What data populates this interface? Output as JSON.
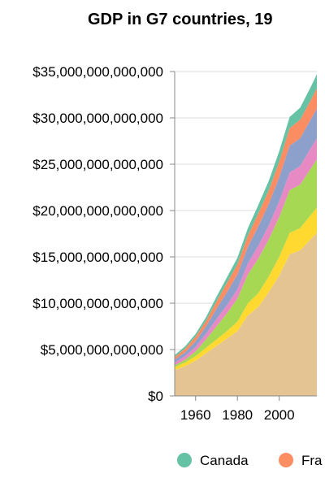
{
  "chart_data": {
    "type": "area",
    "stacked": true,
    "title": "GDP in G7 countries, 19",
    "xlabel": "",
    "ylabel": "",
    "x_ticks": [
      1960,
      1980,
      2000
    ],
    "y_ticks": [
      "$0",
      "$5,000,000,000,000",
      "$10,000,000,000,000",
      "$15,000,000,000,000",
      "$20,000,000,000,000",
      "$25,000,000,000,000",
      "$30,000,000,000,000",
      "$35,000,000,000,000"
    ],
    "xlim": [
      1950,
      2018
    ],
    "ylim": [
      0,
      35000000000000
    ],
    "grid": true,
    "legend_position": "bottom",
    "x": [
      1950,
      1955,
      1960,
      1965,
      1970,
      1975,
      1980,
      1985,
      1990,
      1995,
      2000,
      2005,
      2010,
      2015,
      2018
    ],
    "series": [
      {
        "color": "#e5c494",
        "values": [
          2800000000000.0,
          3200000000000.0,
          3800000000000.0,
          4600000000000.0,
          5400000000000.0,
          6200000000000.0,
          7000000000000.0,
          8700000000000.0,
          9600000000000.0,
          11200000000000.0,
          13000000000000.0,
          15300000000000.0,
          15700000000000.0,
          16900000000000.0,
          17600000000000.0
        ]
      },
      {
        "color": "#ffd92f",
        "values": [
          300000000000.0,
          400000000000.0,
          500000000000.0,
          600000000000.0,
          700000000000.0,
          800000000000.0,
          1000000000000.0,
          1300000000000.0,
          1500000000000.0,
          1700000000000.0,
          2000000000000.0,
          2300000000000.0,
          2400000000000.0,
          2600000000000.0,
          2700000000000.0
        ]
      },
      {
        "color": "#a6d854",
        "values": [
          200000000000.0,
          300000000000.0,
          500000000000.0,
          900000000000.0,
          1400000000000.0,
          1900000000000.0,
          2500000000000.0,
          3100000000000.0,
          3700000000000.0,
          4000000000000.0,
          4300000000000.0,
          4600000000000.0,
          4700000000000.0,
          5000000000000.0,
          5200000000000.0
        ]
      },
      {
        "color": "#e78ac3",
        "values": [
          300000000000.0,
          400000000000.0,
          500000000000.0,
          600000000000.0,
          800000000000.0,
          900000000000.0,
          1000000000000.0,
          1200000000000.0,
          1400000000000.0,
          1500000000000.0,
          1700000000000.0,
          1900000000000.0,
          2000000000000.0,
          2200000000000.0,
          2300000000000.0
        ]
      },
      {
        "color": "#8da0cb",
        "values": [
          300000000000.0,
          400000000000.0,
          600000000000.0,
          800000000000.0,
          1100000000000.0,
          1400000000000.0,
          1600000000000.0,
          1800000000000.0,
          2100000000000.0,
          2300000000000.0,
          2600000000000.0,
          2900000000000.0,
          3000000000000.0,
          3100000000000.0,
          3200000000000.0
        ]
      },
      {
        "name": "France",
        "color": "#fc8d62",
        "values": [
          300000000000.0,
          400000000000.0,
          500000000000.0,
          600000000000.0,
          800000000000.0,
          1000000000000.0,
          1100000000000.0,
          1200000000000.0,
          1400000000000.0,
          1500000000000.0,
          1700000000000.0,
          1900000000000.0,
          2000000000000.0,
          2100000000000.0,
          2200000000000.0
        ]
      },
      {
        "name": "Canada",
        "color": "#66c2a5",
        "values": [
          200000000000.0,
          250000000000.0,
          300000000000.0,
          400000000000.0,
          500000000000.0,
          600000000000.0,
          700000000000.0,
          800000000000.0,
          900000000000.0,
          1000000000000.0,
          1100000000000.0,
          1200000000000.0,
          1300000000000.0,
          1400000000000.0,
          1500000000000.0
        ]
      }
    ],
    "legend": [
      {
        "label": "Canada",
        "color": "#66c2a5"
      },
      {
        "label": "Fra",
        "color": "#fc8d62"
      }
    ]
  }
}
